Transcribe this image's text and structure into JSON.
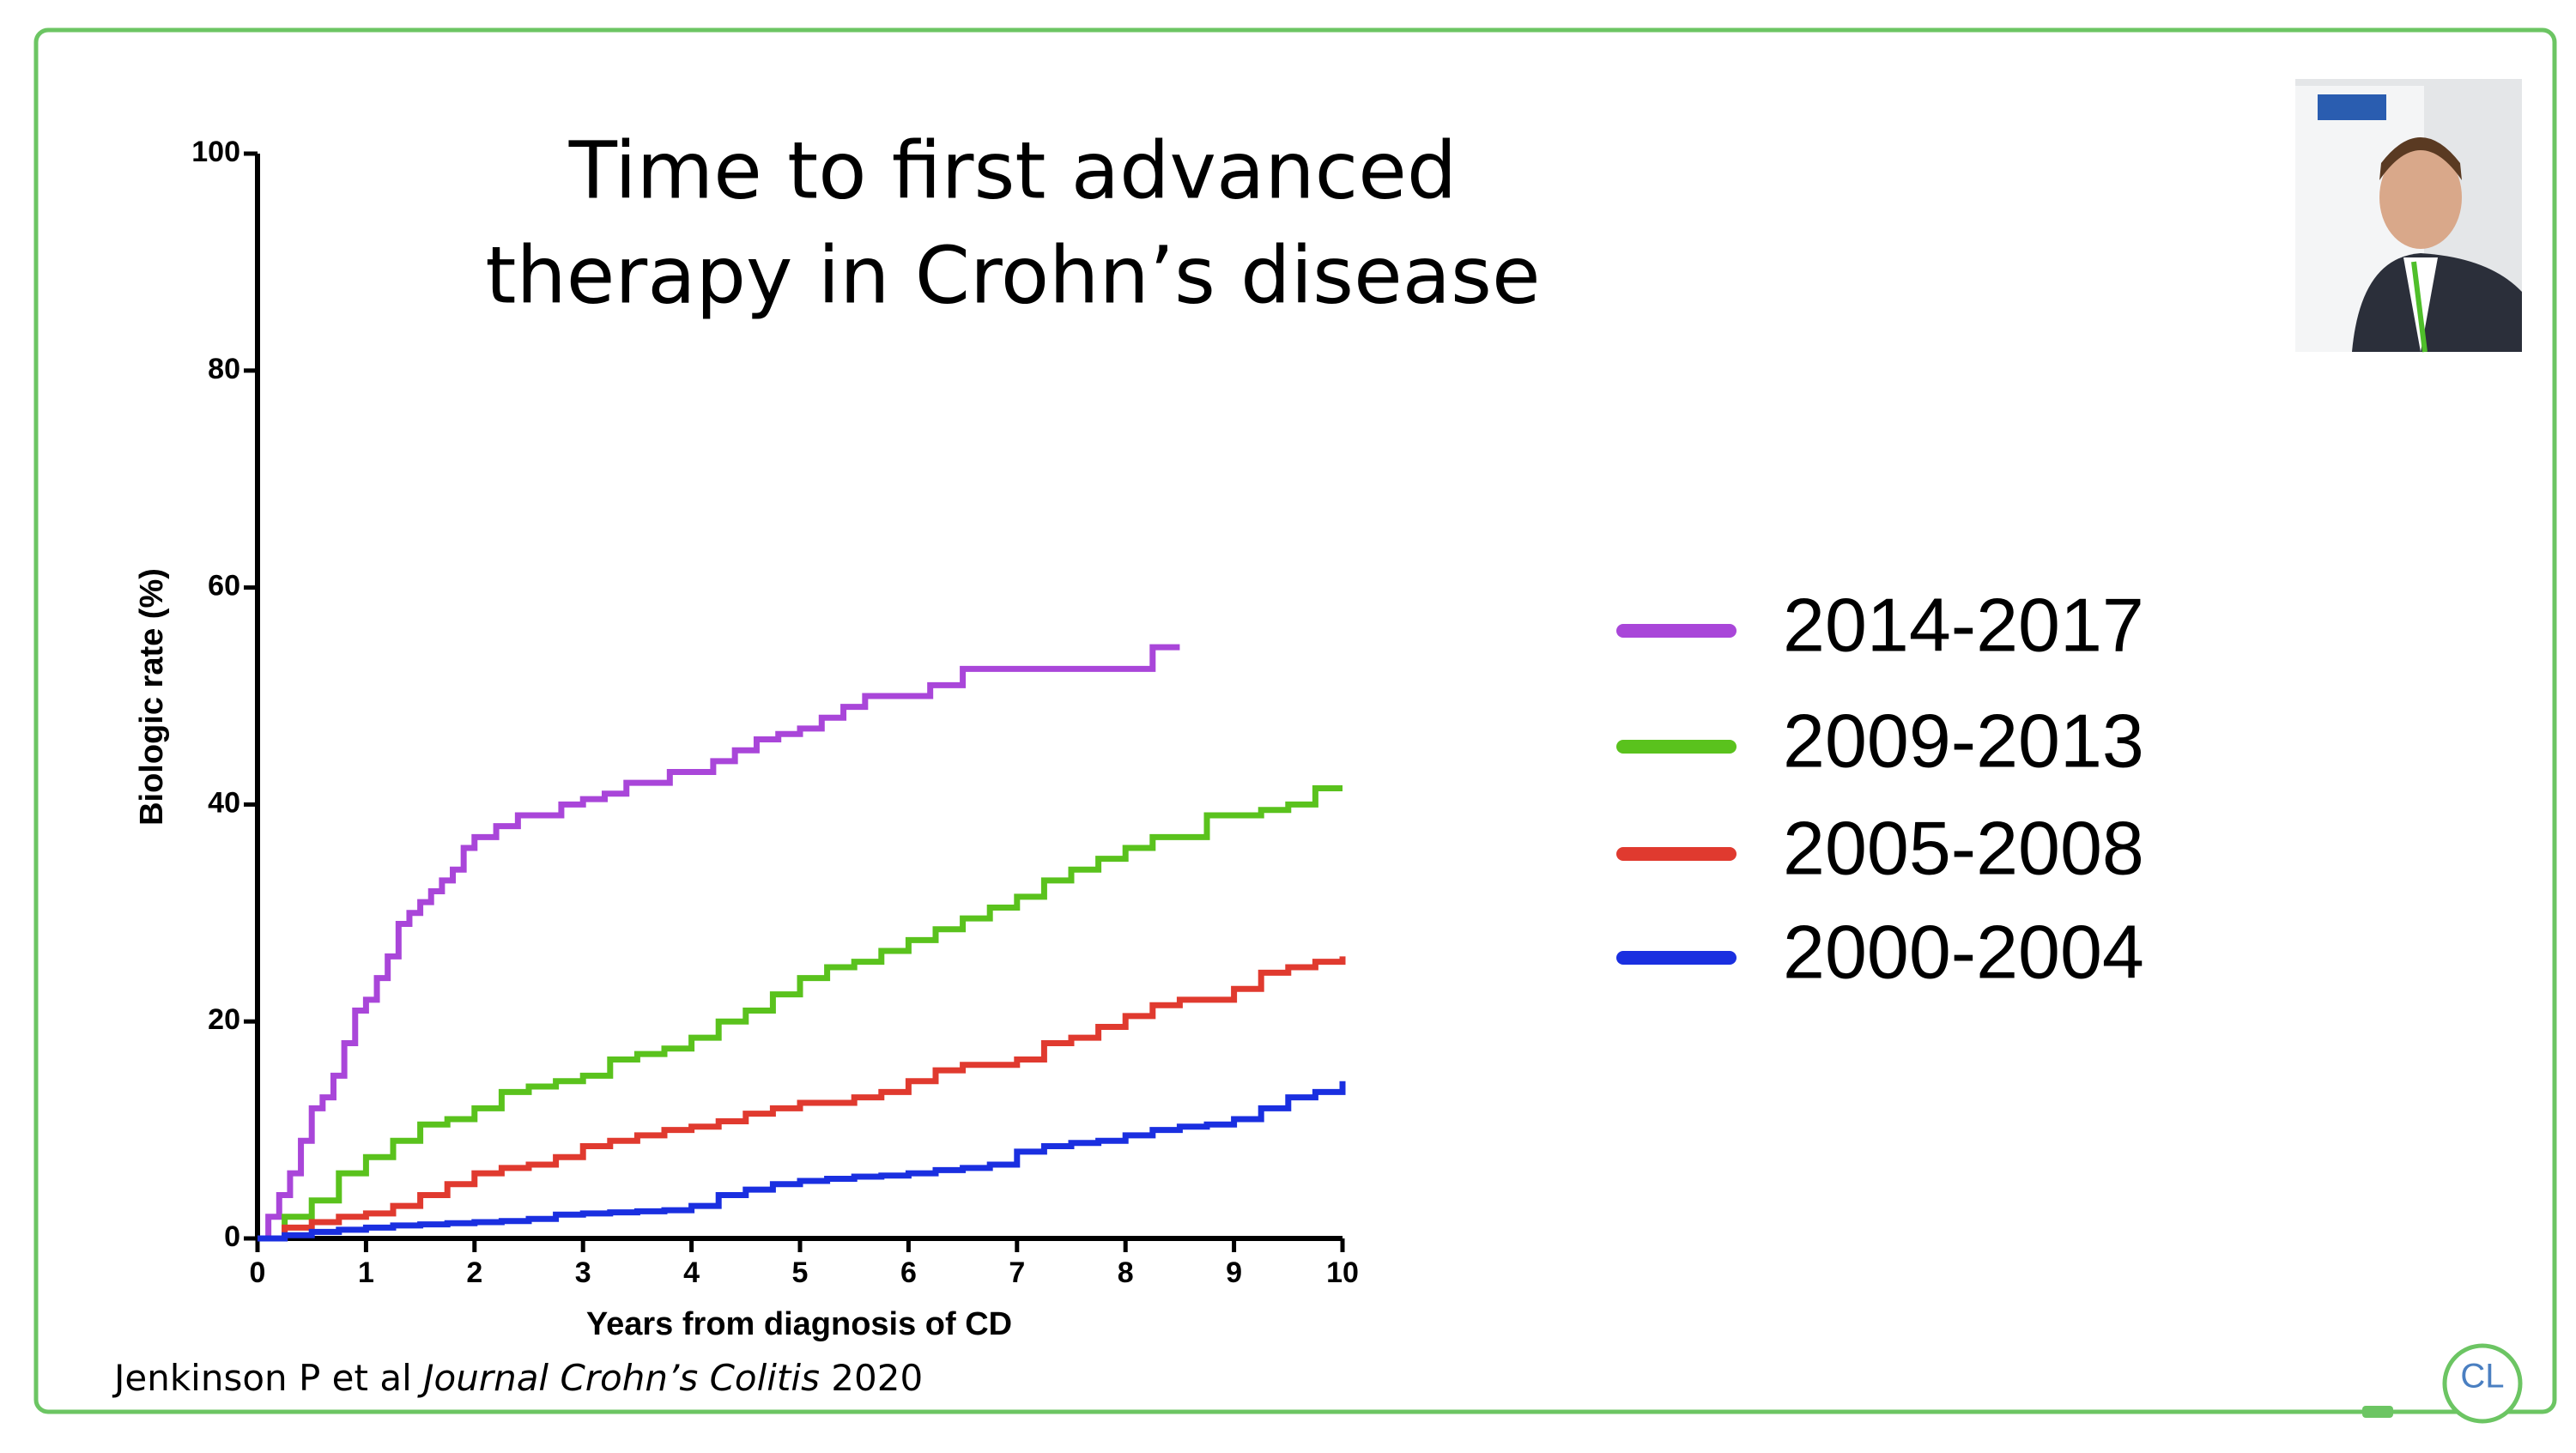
{
  "chart_data": {
    "type": "line",
    "step": "post",
    "title": [
      "Time to first advanced",
      "therapy in Crohn’s disease"
    ],
    "x_label": "Years from diagnosis of CD",
    "y_label": "Biologic rate (%)",
    "xlim": [
      0,
      10
    ],
    "xticks": [
      0,
      1,
      2,
      3,
      4,
      5,
      6,
      7,
      8,
      9,
      10
    ],
    "ylim": [
      0,
      100
    ],
    "yticks": [
      0,
      20,
      40,
      60,
      80,
      100
    ],
    "legend_position": "right",
    "series": [
      {
        "name": "2014-2017",
        "color": "#a946d9",
        "x": [
          0,
          0.1,
          0.2,
          0.3,
          0.4,
          0.5,
          0.6,
          0.7,
          0.8,
          0.9,
          1.0,
          1.1,
          1.2,
          1.3,
          1.4,
          1.5,
          1.6,
          1.7,
          1.8,
          1.9,
          2.0,
          2.2,
          2.4,
          2.6,
          2.8,
          3.0,
          3.2,
          3.4,
          3.6,
          3.8,
          4.0,
          4.2,
          4.4,
          4.6,
          4.8,
          5.0,
          5.2,
          5.4,
          5.6,
          6.0,
          6.2,
          6.5,
          7.0,
          8.0,
          8.25,
          8.5
        ],
        "values": [
          0,
          2,
          4,
          6,
          9,
          12,
          13,
          15,
          18,
          21,
          22,
          24,
          26,
          29,
          30,
          31,
          32,
          33,
          34,
          36,
          37,
          38,
          39,
          39,
          40,
          40.5,
          41,
          42,
          42,
          43,
          43,
          44,
          45,
          46,
          46.5,
          47,
          48,
          49,
          50,
          50,
          51,
          52.5,
          52.5,
          52.5,
          54.5,
          54.5
        ]
      },
      {
        "name": "2009-2013",
        "color": "#5ac21d",
        "x": [
          0,
          0.25,
          0.5,
          0.75,
          1,
          1.25,
          1.5,
          1.75,
          2,
          2.25,
          2.5,
          2.75,
          3,
          3.25,
          3.5,
          3.75,
          4,
          4.25,
          4.5,
          4.75,
          5,
          5.25,
          5.5,
          5.75,
          6,
          6.25,
          6.5,
          6.75,
          7,
          7.25,
          7.5,
          7.75,
          8,
          8.25,
          8.5,
          8.75,
          9,
          9.25,
          9.5,
          9.75,
          10
        ],
        "values": [
          0,
          2,
          3.5,
          6,
          7.5,
          9,
          10.5,
          11,
          12,
          13.5,
          14,
          14.5,
          15,
          16.5,
          17,
          17.5,
          18.5,
          20,
          21,
          22.5,
          24,
          25,
          25.5,
          26.5,
          27.5,
          28.5,
          29.5,
          30.5,
          31.5,
          33,
          34,
          35,
          36,
          37,
          37,
          39,
          39,
          39.5,
          40,
          41.5,
          41.5
        ]
      },
      {
        "name": "2005-2008",
        "color": "#e03a2f",
        "x": [
          0,
          0.25,
          0.5,
          0.75,
          1,
          1.25,
          1.5,
          1.75,
          2,
          2.25,
          2.5,
          2.75,
          3,
          3.25,
          3.5,
          3.75,
          4,
          4.25,
          4.5,
          4.75,
          5,
          5.25,
          5.5,
          5.75,
          6,
          6.25,
          6.5,
          6.75,
          7,
          7.25,
          7.5,
          7.75,
          8,
          8.25,
          8.5,
          8.75,
          9,
          9.25,
          9.5,
          9.75,
          10
        ],
        "values": [
          0,
          1,
          1.5,
          2,
          2.3,
          3,
          4,
          5,
          6,
          6.5,
          6.8,
          7.5,
          8.5,
          9,
          9.5,
          10,
          10.3,
          10.8,
          11.5,
          12,
          12.5,
          12.5,
          13,
          13.5,
          14.5,
          15.5,
          16,
          16,
          16.5,
          18,
          18.5,
          19.5,
          20.5,
          21.5,
          22,
          22,
          23,
          24.5,
          25,
          25.5,
          26
        ]
      },
      {
        "name": "2000-2004",
        "color": "#1a2fe0",
        "x": [
          0,
          0.25,
          0.5,
          0.75,
          1,
          1.25,
          1.5,
          1.75,
          2,
          2.25,
          2.5,
          2.75,
          3,
          3.25,
          3.5,
          3.75,
          4,
          4.25,
          4.5,
          4.75,
          5,
          5.25,
          5.5,
          5.75,
          6,
          6.25,
          6.5,
          6.75,
          7,
          7.25,
          7.5,
          7.75,
          8,
          8.25,
          8.5,
          8.75,
          9,
          9.25,
          9.5,
          9.75,
          10
        ],
        "values": [
          0,
          0.3,
          0.6,
          0.8,
          1,
          1.2,
          1.3,
          1.4,
          1.5,
          1.6,
          1.8,
          2.2,
          2.3,
          2.4,
          2.5,
          2.6,
          3,
          4,
          4.5,
          5,
          5.3,
          5.5,
          5.7,
          5.8,
          6,
          6.3,
          6.5,
          6.8,
          8,
          8.5,
          8.8,
          9,
          9.5,
          10,
          10.3,
          10.5,
          11,
          12,
          13,
          13.5,
          14.5
        ]
      }
    ]
  },
  "citation": {
    "authors": "Jenkinson P et al ",
    "journal": "Journal Crohn’s Colitis",
    "year": " 2020"
  },
  "logo_text": "CL"
}
